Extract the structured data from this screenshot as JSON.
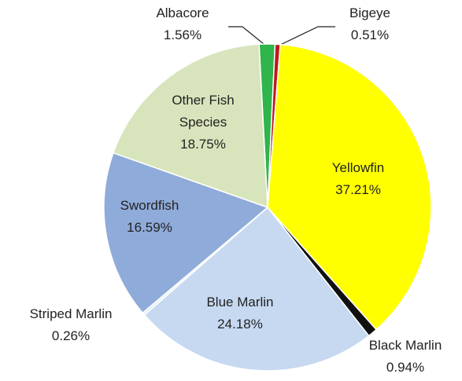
{
  "chart_data": {
    "type": "pie",
    "categories": [
      "Albacore",
      "Bigeye",
      "Yellowfin",
      "Black Marlin",
      "Blue Marlin",
      "Striped Marlin",
      "Swordfish",
      "Other Fish Species"
    ],
    "values": [
      1.56,
      0.51,
      37.21,
      0.94,
      24.18,
      0.26,
      16.59,
      18.75
    ],
    "value_labels": [
      "1.56%",
      "0.51%",
      "37.21%",
      "0.94%",
      "24.18%",
      "0.26%",
      "16.59%",
      "18.75%"
    ],
    "colors": [
      "#2fb54b",
      "#c1171d",
      "#ffff00",
      "#111111",
      "#c6d9f1",
      "#e4ecf6",
      "#8fabd9",
      "#d8e4bc"
    ]
  }
}
